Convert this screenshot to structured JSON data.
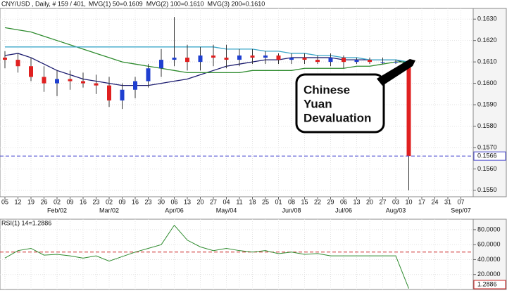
{
  "chart_data": [
    {
      "type": "candlestick",
      "title": "CNY/USD , Daily, # 159 / 401,",
      "categories": [
        "05",
        "12",
        "19",
        "26",
        "02",
        "09",
        "16",
        "23",
        "02",
        "09",
        "16",
        "23",
        "30",
        "06",
        "13",
        "20",
        "27",
        "04",
        "11",
        "18",
        "25",
        "01",
        "08",
        "15",
        "22",
        "29",
        "06",
        "13",
        "20",
        "27",
        "03",
        "10",
        "17",
        "24",
        "31",
        "07"
      ],
      "month_labels": [
        null,
        null,
        null,
        null,
        "Feb/02",
        null,
        null,
        null,
        "Mar/02",
        null,
        null,
        null,
        null,
        "Apr/06",
        null,
        null,
        null,
        "May/04",
        null,
        null,
        null,
        null,
        "Jun/08",
        null,
        null,
        null,
        "Jul/06",
        null,
        null,
        null,
        "Aug/03",
        null,
        null,
        null,
        null,
        "Sep/07"
      ],
      "open": [
        0.1612,
        0.1611,
        0.1608,
        0.1603,
        0.16,
        0.1602,
        0.1601,
        0.16,
        0.1599,
        0.1592,
        0.1597,
        0.1601,
        0.1607,
        0.1611,
        0.1612,
        0.161,
        0.1613,
        0.1612,
        0.1611,
        0.1613,
        0.1612,
        0.1613,
        0.1611,
        0.1612,
        0.1611,
        0.161,
        0.1612,
        0.161,
        0.1611,
        0.161,
        0.161,
        0.161,
        null,
        null,
        null,
        null
      ],
      "high": [
        0.1615,
        0.1614,
        0.1612,
        0.1608,
        0.1606,
        0.1606,
        0.1605,
        0.1604,
        0.1603,
        0.16,
        0.1603,
        0.1609,
        0.1616,
        0.1631,
        0.1618,
        0.1617,
        0.1618,
        0.1618,
        0.1616,
        0.1616,
        0.1615,
        0.1614,
        0.1614,
        0.1614,
        0.1613,
        0.1614,
        0.1613,
        0.1612,
        0.1612,
        0.1612,
        0.1611,
        0.1611,
        null,
        null,
        null,
        null
      ],
      "low": [
        0.1607,
        0.1605,
        0.1601,
        0.1596,
        0.1594,
        0.1597,
        0.1598,
        0.1595,
        0.1589,
        0.1588,
        0.1593,
        0.1598,
        0.1603,
        0.1608,
        0.1606,
        0.1606,
        0.1608,
        0.1607,
        0.1608,
        0.1609,
        0.1609,
        0.1609,
        0.1609,
        0.1609,
        0.1609,
        0.1608,
        0.1607,
        0.1609,
        0.1609,
        0.1609,
        0.1609,
        0.155,
        null,
        null,
        null,
        null
      ],
      "close": [
        0.1611,
        0.1608,
        0.1603,
        0.16,
        0.1602,
        0.1601,
        0.16,
        0.1599,
        0.1592,
        0.1597,
        0.1601,
        0.1607,
        0.1611,
        0.1612,
        0.161,
        0.1613,
        0.1612,
        0.1611,
        0.1613,
        0.1612,
        0.1613,
        0.1611,
        0.1612,
        0.1611,
        0.161,
        0.1612,
        0.161,
        0.1611,
        0.161,
        0.161,
        0.161,
        0.1566,
        null,
        null,
        null,
        null
      ],
      "up_color": "#1f3fd0",
      "down_color": "#e02020",
      "series": [
        {
          "name": "MVG(1) 50=0.1609",
          "color": "#1a1a6e",
          "values": [
            0.1613,
            0.1614,
            0.1612,
            0.1609,
            0.1606,
            0.1604,
            0.1602,
            0.1601,
            0.16,
            0.1599,
            0.1599,
            0.1599,
            0.16,
            0.1601,
            0.1602,
            0.1604,
            0.1606,
            0.1608,
            0.1609,
            0.161,
            0.1611,
            0.1611,
            0.1612,
            0.1612,
            0.1612,
            0.1612,
            0.1611,
            0.1611,
            0.1611,
            0.1611,
            0.1611,
            0.1609,
            null,
            null,
            null,
            null
          ]
        },
        {
          "name": "MVG(2) 100=0.1610",
          "color": "#2e8b2e",
          "values": [
            0.1626,
            0.1625,
            0.1624,
            0.1622,
            0.162,
            0.1618,
            0.1616,
            0.1614,
            0.1612,
            0.161,
            0.1609,
            0.1608,
            0.1607,
            0.1606,
            0.1605,
            0.1605,
            0.1605,
            0.1605,
            0.1605,
            0.1606,
            0.1606,
            0.1606,
            0.1606,
            0.1607,
            0.1607,
            0.1607,
            0.1607,
            0.1608,
            0.1608,
            0.1609,
            0.161,
            0.161,
            null,
            null,
            null,
            null
          ]
        },
        {
          "name": "MVG(3) 200=0.1610",
          "color": "#3aa6c8",
          "values": [
            0.1617,
            0.1617,
            0.1617,
            0.1617,
            0.1617,
            0.1617,
            0.1617,
            0.1617,
            0.1617,
            0.1617,
            0.1617,
            0.1617,
            0.1617,
            0.1617,
            0.1617,
            0.1617,
            0.1617,
            0.1616,
            0.1616,
            0.1616,
            0.1615,
            0.1615,
            0.1614,
            0.1614,
            0.1613,
            0.1613,
            0.1612,
            0.1612,
            0.1611,
            0.1611,
            0.1611,
            0.161,
            null,
            null,
            null,
            null
          ]
        }
      ],
      "ylim": [
        0.1547,
        0.1635
      ],
      "yticks": [
        {
          "value": 0.163,
          "label": "0.1630"
        },
        {
          "value": 0.162,
          "label": "0.1620"
        },
        {
          "value": 0.161,
          "label": "0.1610"
        },
        {
          "value": 0.16,
          "label": "0.1600"
        },
        {
          "value": 0.159,
          "label": "0.1590"
        },
        {
          "value": 0.158,
          "label": "0.1580"
        },
        {
          "value": 0.157,
          "label": "0.1570"
        },
        {
          "value": 0.156,
          "label": "0.1560"
        },
        {
          "value": 0.155,
          "label": "0.1550"
        }
      ],
      "last_price": {
        "value": 0.1566,
        "label": "0.1566",
        "color": "#4a4ad0"
      },
      "grid": true,
      "annotation_lines": [
        "Chinese",
        "Yuan",
        "Devaluation"
      ]
    },
    {
      "type": "line",
      "series": [
        {
          "name": "RSI(1) 14=1.2886",
          "color": "#2e8b2e",
          "values": [
            42,
            52,
            55,
            46,
            47,
            45,
            42,
            45,
            38,
            44,
            50,
            55,
            60,
            86,
            66,
            57,
            52,
            55,
            52,
            50,
            52,
            48,
            50,
            47,
            48,
            45,
            45,
            45,
            45,
            45,
            45,
            1.2886,
            null,
            null,
            null,
            null
          ]
        }
      ],
      "ylim": [
        0,
        94
      ],
      "yticks": [
        {
          "value": 80,
          "label": "80.0000"
        },
        {
          "value": 60,
          "label": "60.0000"
        },
        {
          "value": 40,
          "label": "40.0000"
        },
        {
          "value": 20,
          "label": "20.0000"
        }
      ],
      "level": 50,
      "level_color": "#cc2222",
      "last_value": {
        "value": 1.2886,
        "label": "1.2886",
        "color": "#cc2222"
      },
      "grid": true
    }
  ]
}
